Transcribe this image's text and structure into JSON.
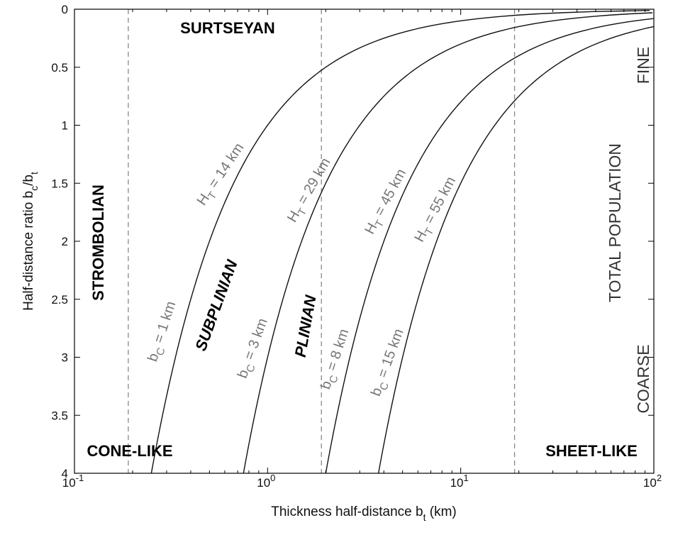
{
  "chart_data": {
    "type": "line",
    "x_scale": "log",
    "xlim": [
      0.1,
      100
    ],
    "ylim": [
      0,
      4
    ],
    "y_inverted": true,
    "xlabel_main": "Thickness half-distance b",
    "xlabel_sub": "t",
    "xlabel_tail": " (km)",
    "ylabel_main": "Half-distance ratio b",
    "ylabel_sub1": "c",
    "ylabel_mid": "/b",
    "ylabel_sub2": "t",
    "x_ticks": [
      {
        "value": 0.1,
        "base": "10",
        "exp": "-1"
      },
      {
        "value": 1,
        "base": "10",
        "exp": "0"
      },
      {
        "value": 10,
        "base": "10",
        "exp": "1"
      },
      {
        "value": 100,
        "base": "10",
        "exp": "2"
      }
    ],
    "y_ticks": [
      "0",
      "0.5",
      "1",
      "1.5",
      "2",
      "2.5",
      "3",
      "3.5",
      "4"
    ],
    "dashed_x_lines": [
      0.19,
      1.9,
      19
    ],
    "series": [
      {
        "bc": 1,
        "label_bc": "b",
        "label_bc_sub": "C",
        "label_bc_tail": " = 1 km",
        "label_ht": "H",
        "label_ht_sub": "T",
        "label_ht_tail": " = 14 km"
      },
      {
        "bc": 3,
        "label_bc": "b",
        "label_bc_sub": "C",
        "label_bc_tail": " = 3 km",
        "label_ht": "H",
        "label_ht_sub": "T",
        "label_ht_tail": " = 29 km"
      },
      {
        "bc": 8,
        "label_bc": "b",
        "label_bc_sub": "C",
        "label_bc_tail": " = 8 km",
        "label_ht": "H",
        "label_ht_sub": "T",
        "label_ht_tail": " = 45 km"
      },
      {
        "bc": 15,
        "label_bc": "b",
        "label_bc_sub": "C",
        "label_bc_tail": " = 15 km",
        "label_ht": "H",
        "label_ht_sub": "T",
        "label_ht_tail": " = 55 km"
      }
    ],
    "annotations": {
      "surtseyan": "SURTSEYAN",
      "strombolian": "STROMBOLIAN",
      "subplinian": "SUBPLINIAN",
      "plinian": "PLINIAN",
      "cone_like": "CONE-LIKE",
      "sheet_like": "SHEET-LIKE",
      "fine": "FINE",
      "total_population": "TOTAL POPULATION",
      "coarse": "COARSE"
    }
  }
}
